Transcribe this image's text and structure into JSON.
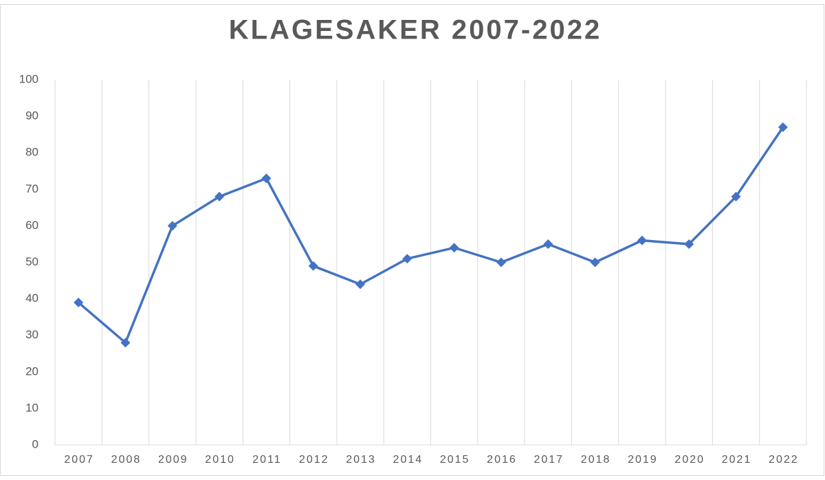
{
  "chart_data": {
    "type": "line",
    "title": "KLAGESAKER 2007-2022",
    "categories": [
      "2007",
      "2008",
      "2009",
      "2010",
      "2011",
      "2012",
      "2013",
      "2014",
      "2015",
      "2016",
      "2017",
      "2018",
      "2019",
      "2020",
      "2021",
      "2022"
    ],
    "series": [
      {
        "name": "Klagesaker",
        "color": "#4472c4",
        "values": [
          39,
          28,
          60,
          68,
          73,
          49,
          44,
          51,
          54,
          50,
          55,
          50,
          56,
          55,
          68,
          87
        ]
      }
    ],
    "ylim": [
      0,
      100
    ],
    "yticks": [
      0,
      10,
      20,
      30,
      40,
      50,
      60,
      70,
      80,
      90,
      100
    ],
    "grid": "x",
    "marker": "diamond"
  }
}
